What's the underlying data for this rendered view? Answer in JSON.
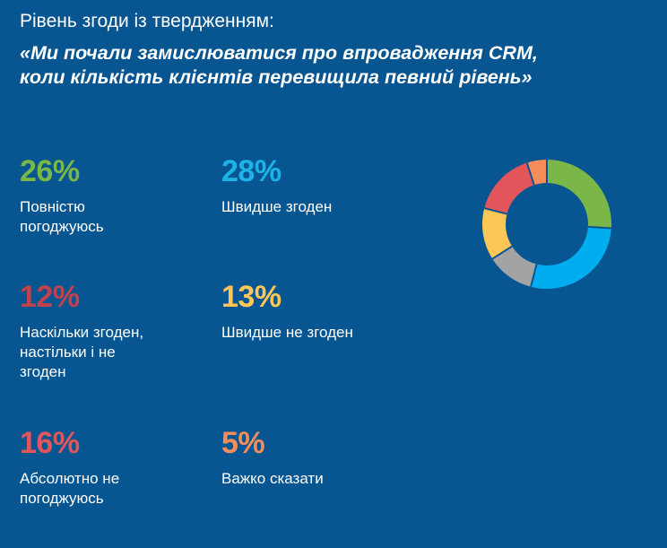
{
  "subtitle": "Рівень згоди із твердженням:",
  "quote_line1": "«Ми почали замислюватися про впровадження CRM,",
  "quote_line2": "коли кількість клієнтів перевищила певний рівень»",
  "chart_data": {
    "type": "pie",
    "style": "donut",
    "categories": [
      "Повністю погоджуюсь",
      "Швидше згоден",
      "Наскільки згоден, настільки і не згоден",
      "Швидше не згоден",
      "Абсолютно не погоджуюсь",
      "Важко сказати"
    ],
    "values": [
      26,
      28,
      12,
      13,
      16,
      5
    ],
    "labels": [
      "26%",
      "28%",
      "12%",
      "13%",
      "16%",
      "5%"
    ],
    "label_lines": [
      [
        "Повністю",
        "погоджуюсь"
      ],
      [
        "Швидше згоден"
      ],
      [
        "Наскільки згоден,",
        "настільки і не",
        "згоден"
      ],
      [
        "Швидше не згоден"
      ],
      [
        "Абсолютно не",
        "погоджуюсь"
      ],
      [
        "Важко сказати"
      ]
    ],
    "colors": [
      "#7AB648",
      "#1CB3E8",
      "#C1424B",
      "#FCC757",
      "#E2565B",
      "#F58D5A"
    ],
    "donut_colors": [
      "#7AB648",
      "#00AEEF",
      "#A3A3A3",
      "#FCC757",
      "#E2565B",
      "#F58D5A"
    ]
  }
}
